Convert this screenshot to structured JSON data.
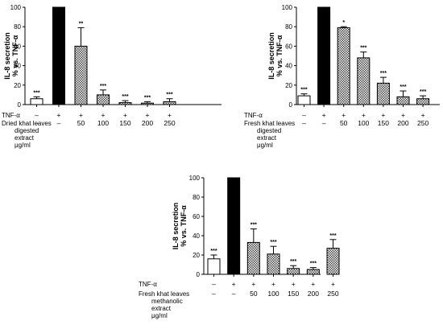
{
  "chart_data": [
    {
      "type": "bar",
      "ylabel_lines": [
        "IL-8 secretion",
        "% vs. TNF-α"
      ],
      "ylim": [
        0,
        100
      ],
      "yticks": [
        "0",
        "20",
        "40",
        "60",
        "80",
        "100"
      ],
      "row1_label": "TNF-α",
      "row1_values": [
        "–",
        "+",
        "+",
        "+",
        "+",
        "+",
        "+"
      ],
      "row2_label_lines": [
        "Dried khat leaves",
        "digested",
        "extract",
        "μg/ml"
      ],
      "row2_values": [
        "–",
        "–",
        "50",
        "100",
        "150",
        "200",
        "250"
      ],
      "values": [
        6,
        100,
        60,
        10,
        2,
        1.5,
        3
      ],
      "errors": [
        2,
        0,
        19,
        5,
        2,
        1.5,
        3
      ],
      "fills": [
        "white",
        "black",
        "hatch",
        "hatch",
        "hatch",
        "hatch",
        "hatch"
      ],
      "significance": [
        "***",
        "",
        "**",
        "***",
        "***",
        "***",
        "***"
      ]
    },
    {
      "type": "bar",
      "ylabel_lines": [
        "IL-8 secretion",
        "% vs. TNF-α"
      ],
      "ylim": [
        0,
        100
      ],
      "yticks": [
        "0",
        "20",
        "40",
        "60",
        "80",
        "100"
      ],
      "row1_label": "TNF-α",
      "row1_values": [
        "–",
        "+",
        "+",
        "+",
        "+",
        "+",
        "+"
      ],
      "row2_label_lines": [
        "Fresh khat leaves",
        "digested",
        "extract",
        "μg/ml"
      ],
      "row2_values": [
        "–",
        "–",
        "50",
        "100",
        "150",
        "200",
        "250"
      ],
      "values": [
        9,
        100,
        79,
        48,
        22,
        8,
        6
      ],
      "errors": [
        2,
        0,
        1,
        6,
        6,
        6,
        3
      ],
      "fills": [
        "white",
        "black",
        "hatch",
        "hatch",
        "hatch",
        "hatch",
        "hatch"
      ],
      "significance": [
        "***",
        "",
        "*",
        "***",
        "***",
        "***",
        "***"
      ]
    },
    {
      "type": "bar",
      "ylabel_lines": [
        "IL-8 secretion",
        "% vs. TNF-α"
      ],
      "ylim": [
        0,
        100
      ],
      "yticks": [
        "0",
        "20",
        "40",
        "60",
        "80",
        "100"
      ],
      "row1_label": "TNF-α",
      "row1_values": [
        "–",
        "+",
        "+",
        "+",
        "+",
        "+",
        "+"
      ],
      "row2_label_lines": [
        "Fresh khat leaves",
        "methanolic",
        "extract",
        "μg/ml"
      ],
      "row2_values": [
        "–",
        "–",
        "50",
        "100",
        "150",
        "200",
        "250"
      ],
      "values": [
        16,
        100,
        33,
        21,
        6,
        5,
        27
      ],
      "errors": [
        4,
        0,
        14,
        8,
        3,
        2,
        9
      ],
      "fills": [
        "white",
        "black",
        "hatch",
        "hatch",
        "hatch",
        "hatch",
        "hatch"
      ],
      "significance": [
        "***",
        "",
        "***",
        "***",
        "***",
        "***",
        "***"
      ]
    }
  ]
}
